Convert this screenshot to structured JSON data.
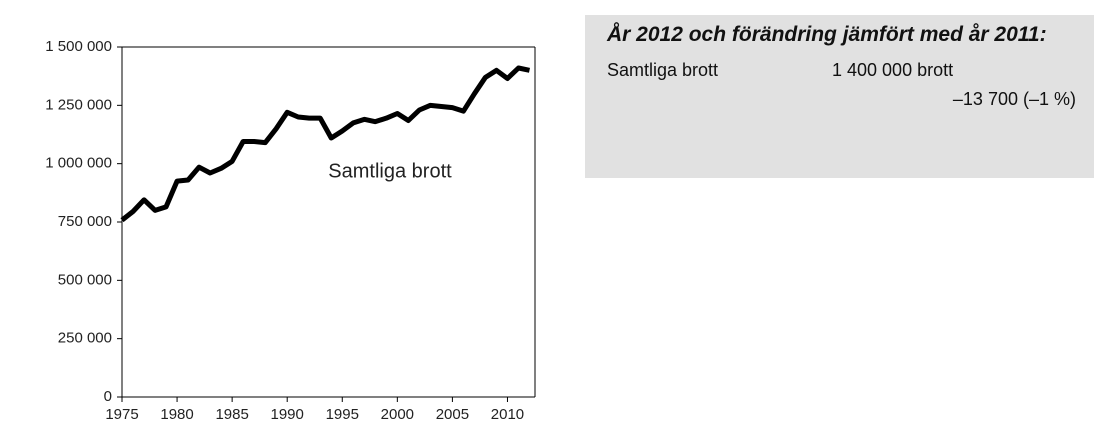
{
  "chart_data": {
    "type": "line",
    "x": [
      1975,
      1976,
      1977,
      1978,
      1979,
      1980,
      1981,
      1982,
      1983,
      1984,
      1985,
      1986,
      1987,
      1988,
      1989,
      1990,
      1991,
      1992,
      1993,
      1994,
      1995,
      1996,
      1997,
      1998,
      1999,
      2000,
      2001,
      2002,
      2003,
      2004,
      2005,
      2006,
      2007,
      2008,
      2009,
      2010,
      2011,
      2012
    ],
    "series": [
      {
        "name": "Samtliga brott",
        "color": "#000000",
        "values": [
          758000,
          795000,
          845000,
          800000,
          815000,
          925000,
          930000,
          985000,
          960000,
          980000,
          1010000,
          1095000,
          1095000,
          1090000,
          1150000,
          1220000,
          1200000,
          1195000,
          1195000,
          1110000,
          1140000,
          1175000,
          1190000,
          1180000,
          1195000,
          1215000,
          1185000,
          1230000,
          1250000,
          1245000,
          1240000,
          1225000,
          1300000,
          1370000,
          1400000,
          1365000,
          1410000,
          1400000
        ]
      }
    ],
    "xlim": [
      1975,
      2012.5
    ],
    "xticks": [
      1975,
      1980,
      1985,
      1990,
      1995,
      2000,
      2005,
      2010
    ],
    "ylim": [
      0,
      1500000
    ],
    "yticks": [
      0,
      {
        "value": 250000,
        "label": "250 000"
      },
      {
        "value": 500000,
        "label": "500 000"
      },
      {
        "value": 750000,
        "label": "750 000"
      },
      {
        "value": 1000000,
        "label": "1 000 000"
      },
      {
        "value": 1250000,
        "label": "1 250 000"
      },
      {
        "value": 1500000,
        "label": "1 500 000"
      }
    ],
    "grid": false
  },
  "info_box": {
    "title": "År 2012 och förändring jämfört med år 2011:",
    "rows": [
      {
        "label": "Samtliga brott",
        "value": "1 400 000 brott",
        "change": "–13 700 (–1 %)"
      }
    ]
  }
}
